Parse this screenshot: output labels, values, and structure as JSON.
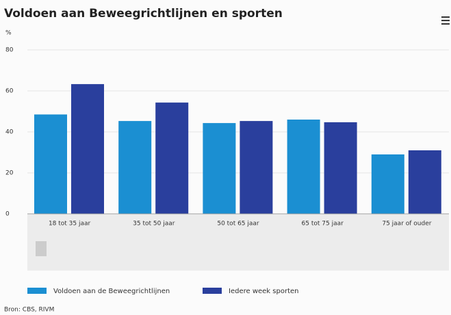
{
  "chart_data": {
    "type": "bar",
    "title": "Voldoen aan Beweegrichtlijnen en sporten",
    "y_label": "%",
    "source": "Bron: CBS, RIVM",
    "categories": [
      "18 tot 35 jaar",
      "35 tot 50 jaar",
      "50 tot 65 jaar",
      "65 tot 75 jaar",
      "75 jaar of ouder"
    ],
    "series": [
      {
        "name": "Voldoen aan de Beweegrichtlijnen",
        "color": "#1b8fd2",
        "values": [
          48.5,
          45.3,
          44.3,
          46,
          29
        ]
      },
      {
        "name": "Iedere week sporten",
        "color": "#2a3f9d",
        "values": [
          63.3,
          54.3,
          45.3,
          44.7,
          31
        ]
      }
    ],
    "ylim": [
      0,
      80
    ],
    "yticks": [
      0,
      20,
      40,
      60,
      80
    ],
    "grid": true
  }
}
